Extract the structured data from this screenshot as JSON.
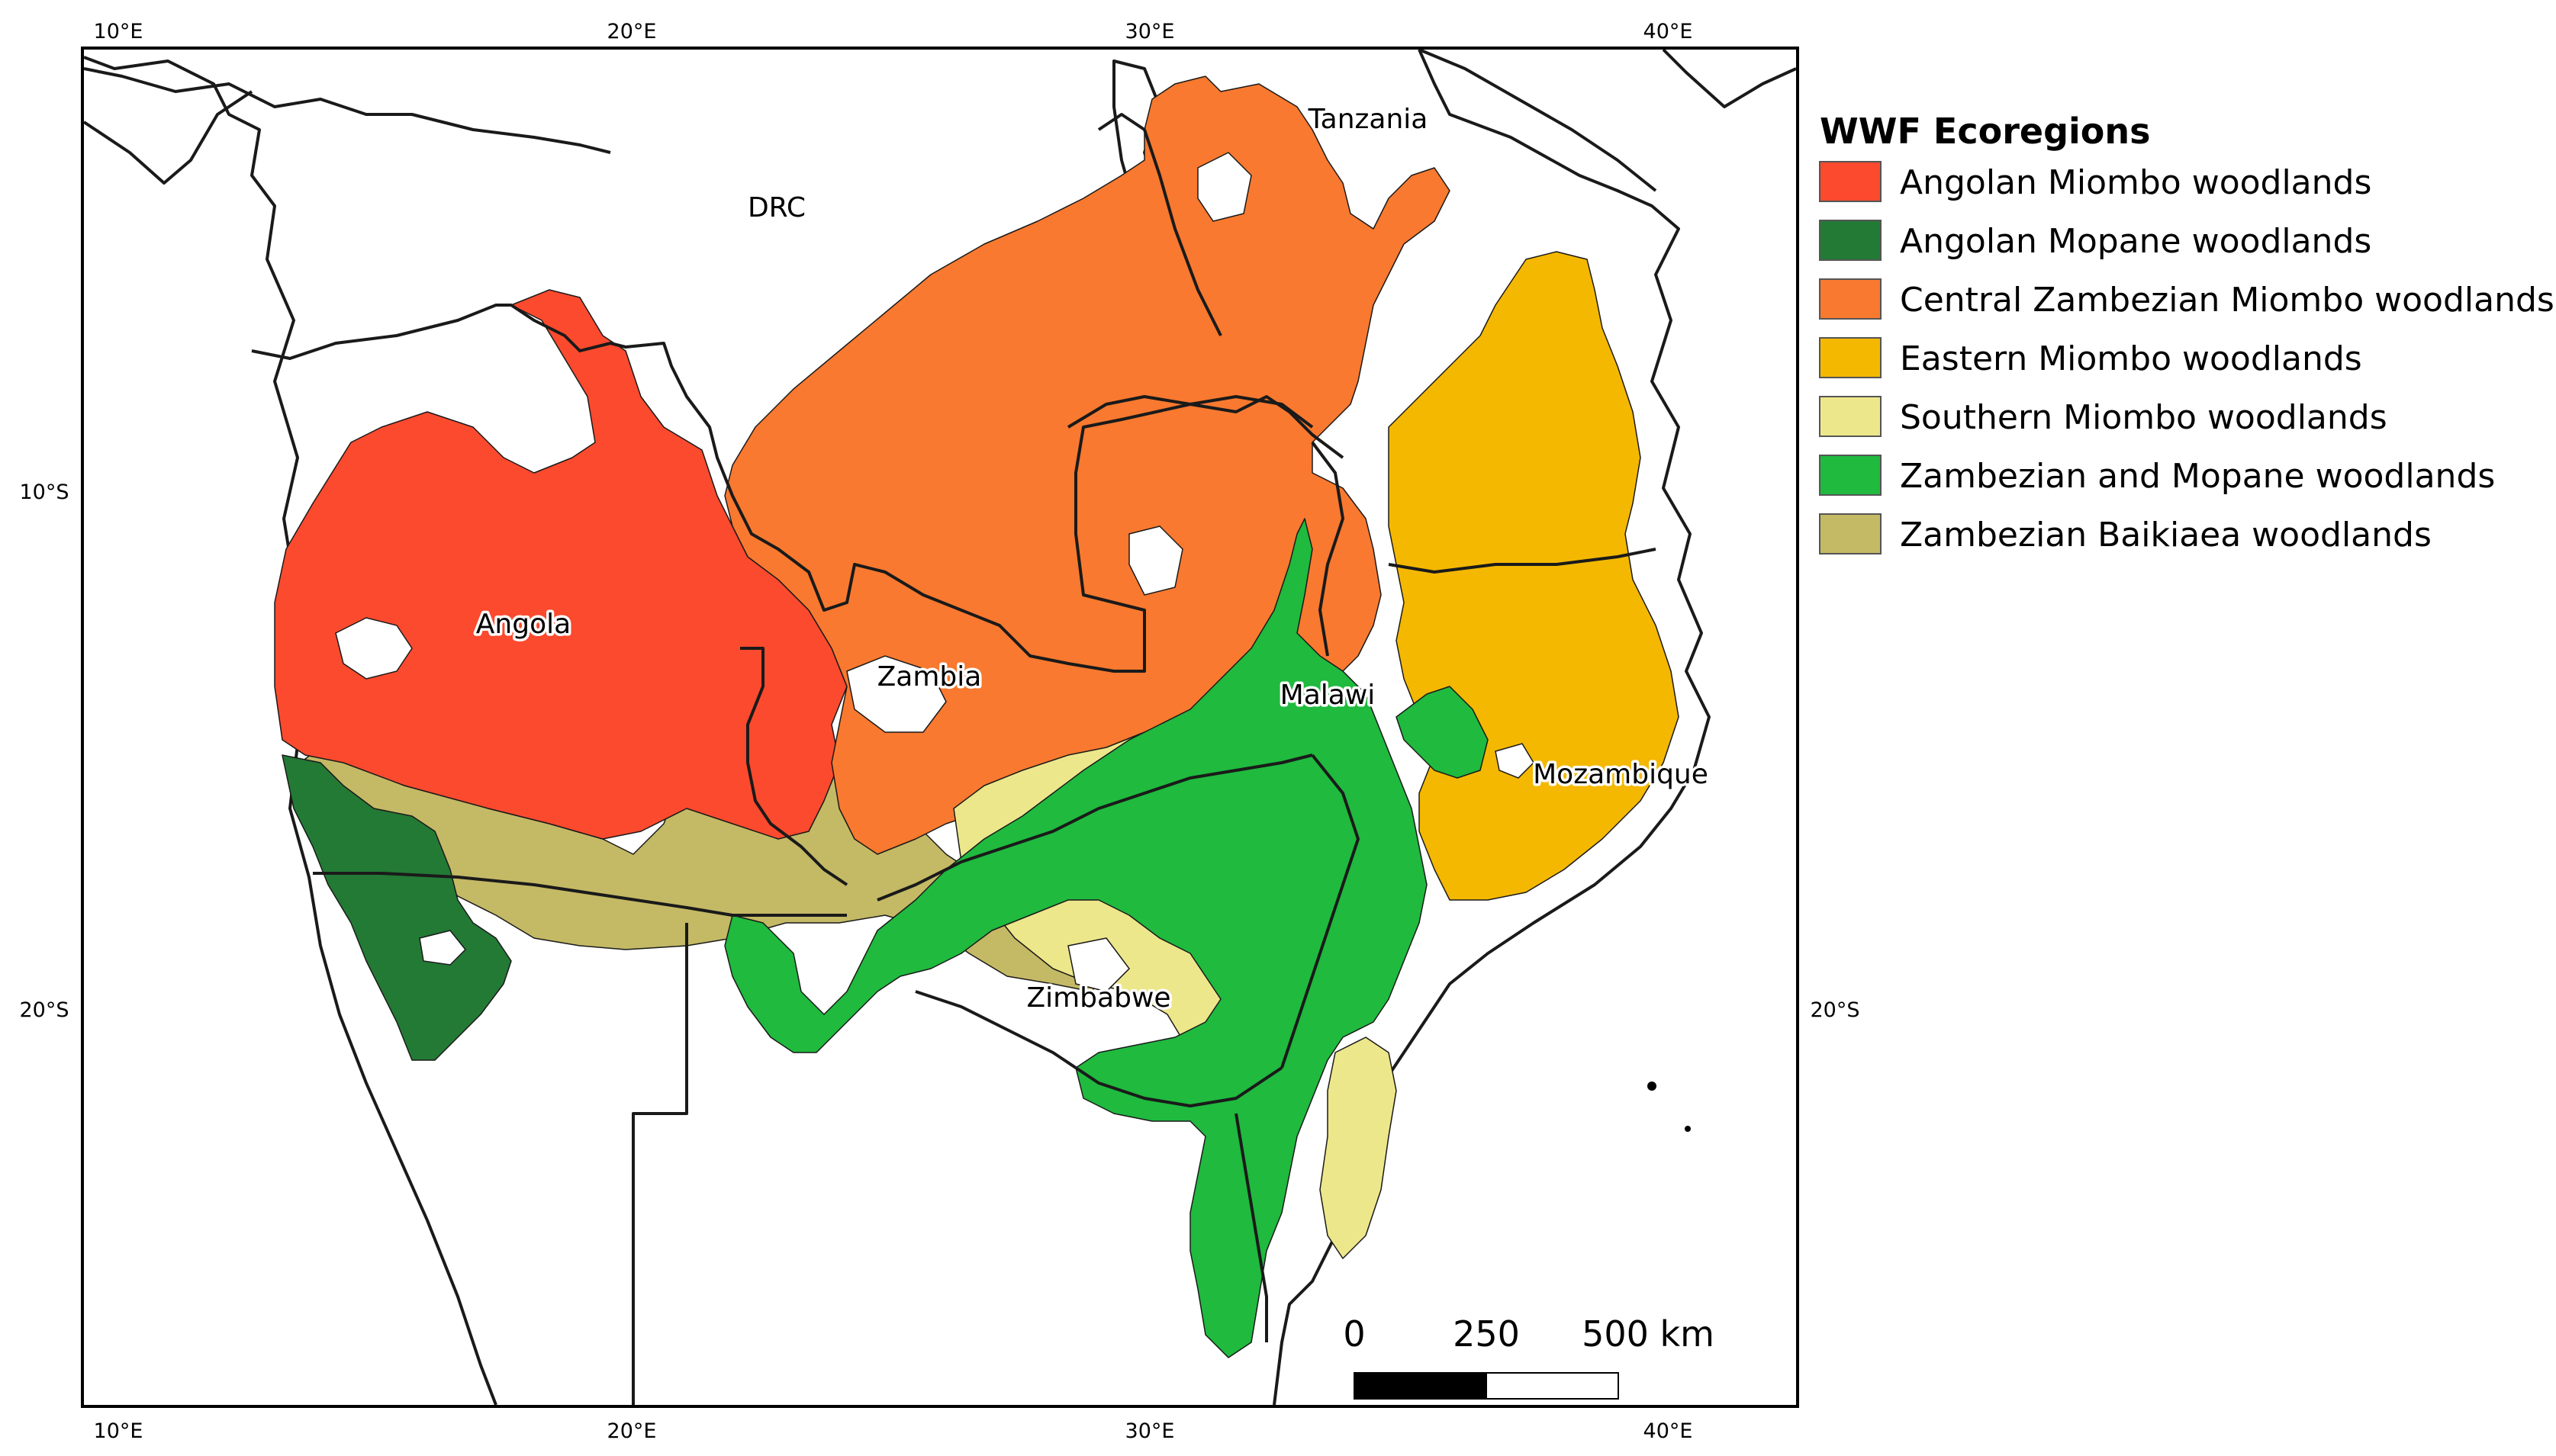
{
  "map": {
    "axis_top": [
      "10°E",
      "20°E",
      "30°E",
      "40°E"
    ],
    "axis_bottom": [
      "10°E",
      "20°E",
      "30°E",
      "40°E"
    ],
    "axis_left": [
      "10°S",
      "20°S"
    ],
    "axis_right": [
      "20°S"
    ],
    "countries": {
      "drc": "DRC",
      "tanzania": "Tanzania",
      "angola": "Angola",
      "zambia": "Zambia",
      "malawi": "Malawi",
      "mozambique": "Mozambique",
      "zimbabwe": "Zimbabwe"
    }
  },
  "legend": {
    "title": "WWF Ecoregions",
    "items": [
      {
        "label": "Angolan Miombo woodlands",
        "color": "#fb4a2e"
      },
      {
        "label": "Angolan Mopane woodlands",
        "color": "#237a35"
      },
      {
        "label": "Central Zambezian Miombo woodlands",
        "color": "#f8792f"
      },
      {
        "label": "Eastern Miombo woodlands",
        "color": "#f4b800"
      },
      {
        "label": "Southern Miombo woodlands",
        "color": "#ede78b"
      },
      {
        "label": "Zambezian and Mopane woodlands",
        "color": "#1fba3e"
      },
      {
        "label": "Zambezian Baikiaea woodlands",
        "color": "#c4b965"
      }
    ]
  },
  "scale_bar": {
    "labels": [
      "0",
      "250",
      "500 km"
    ]
  }
}
